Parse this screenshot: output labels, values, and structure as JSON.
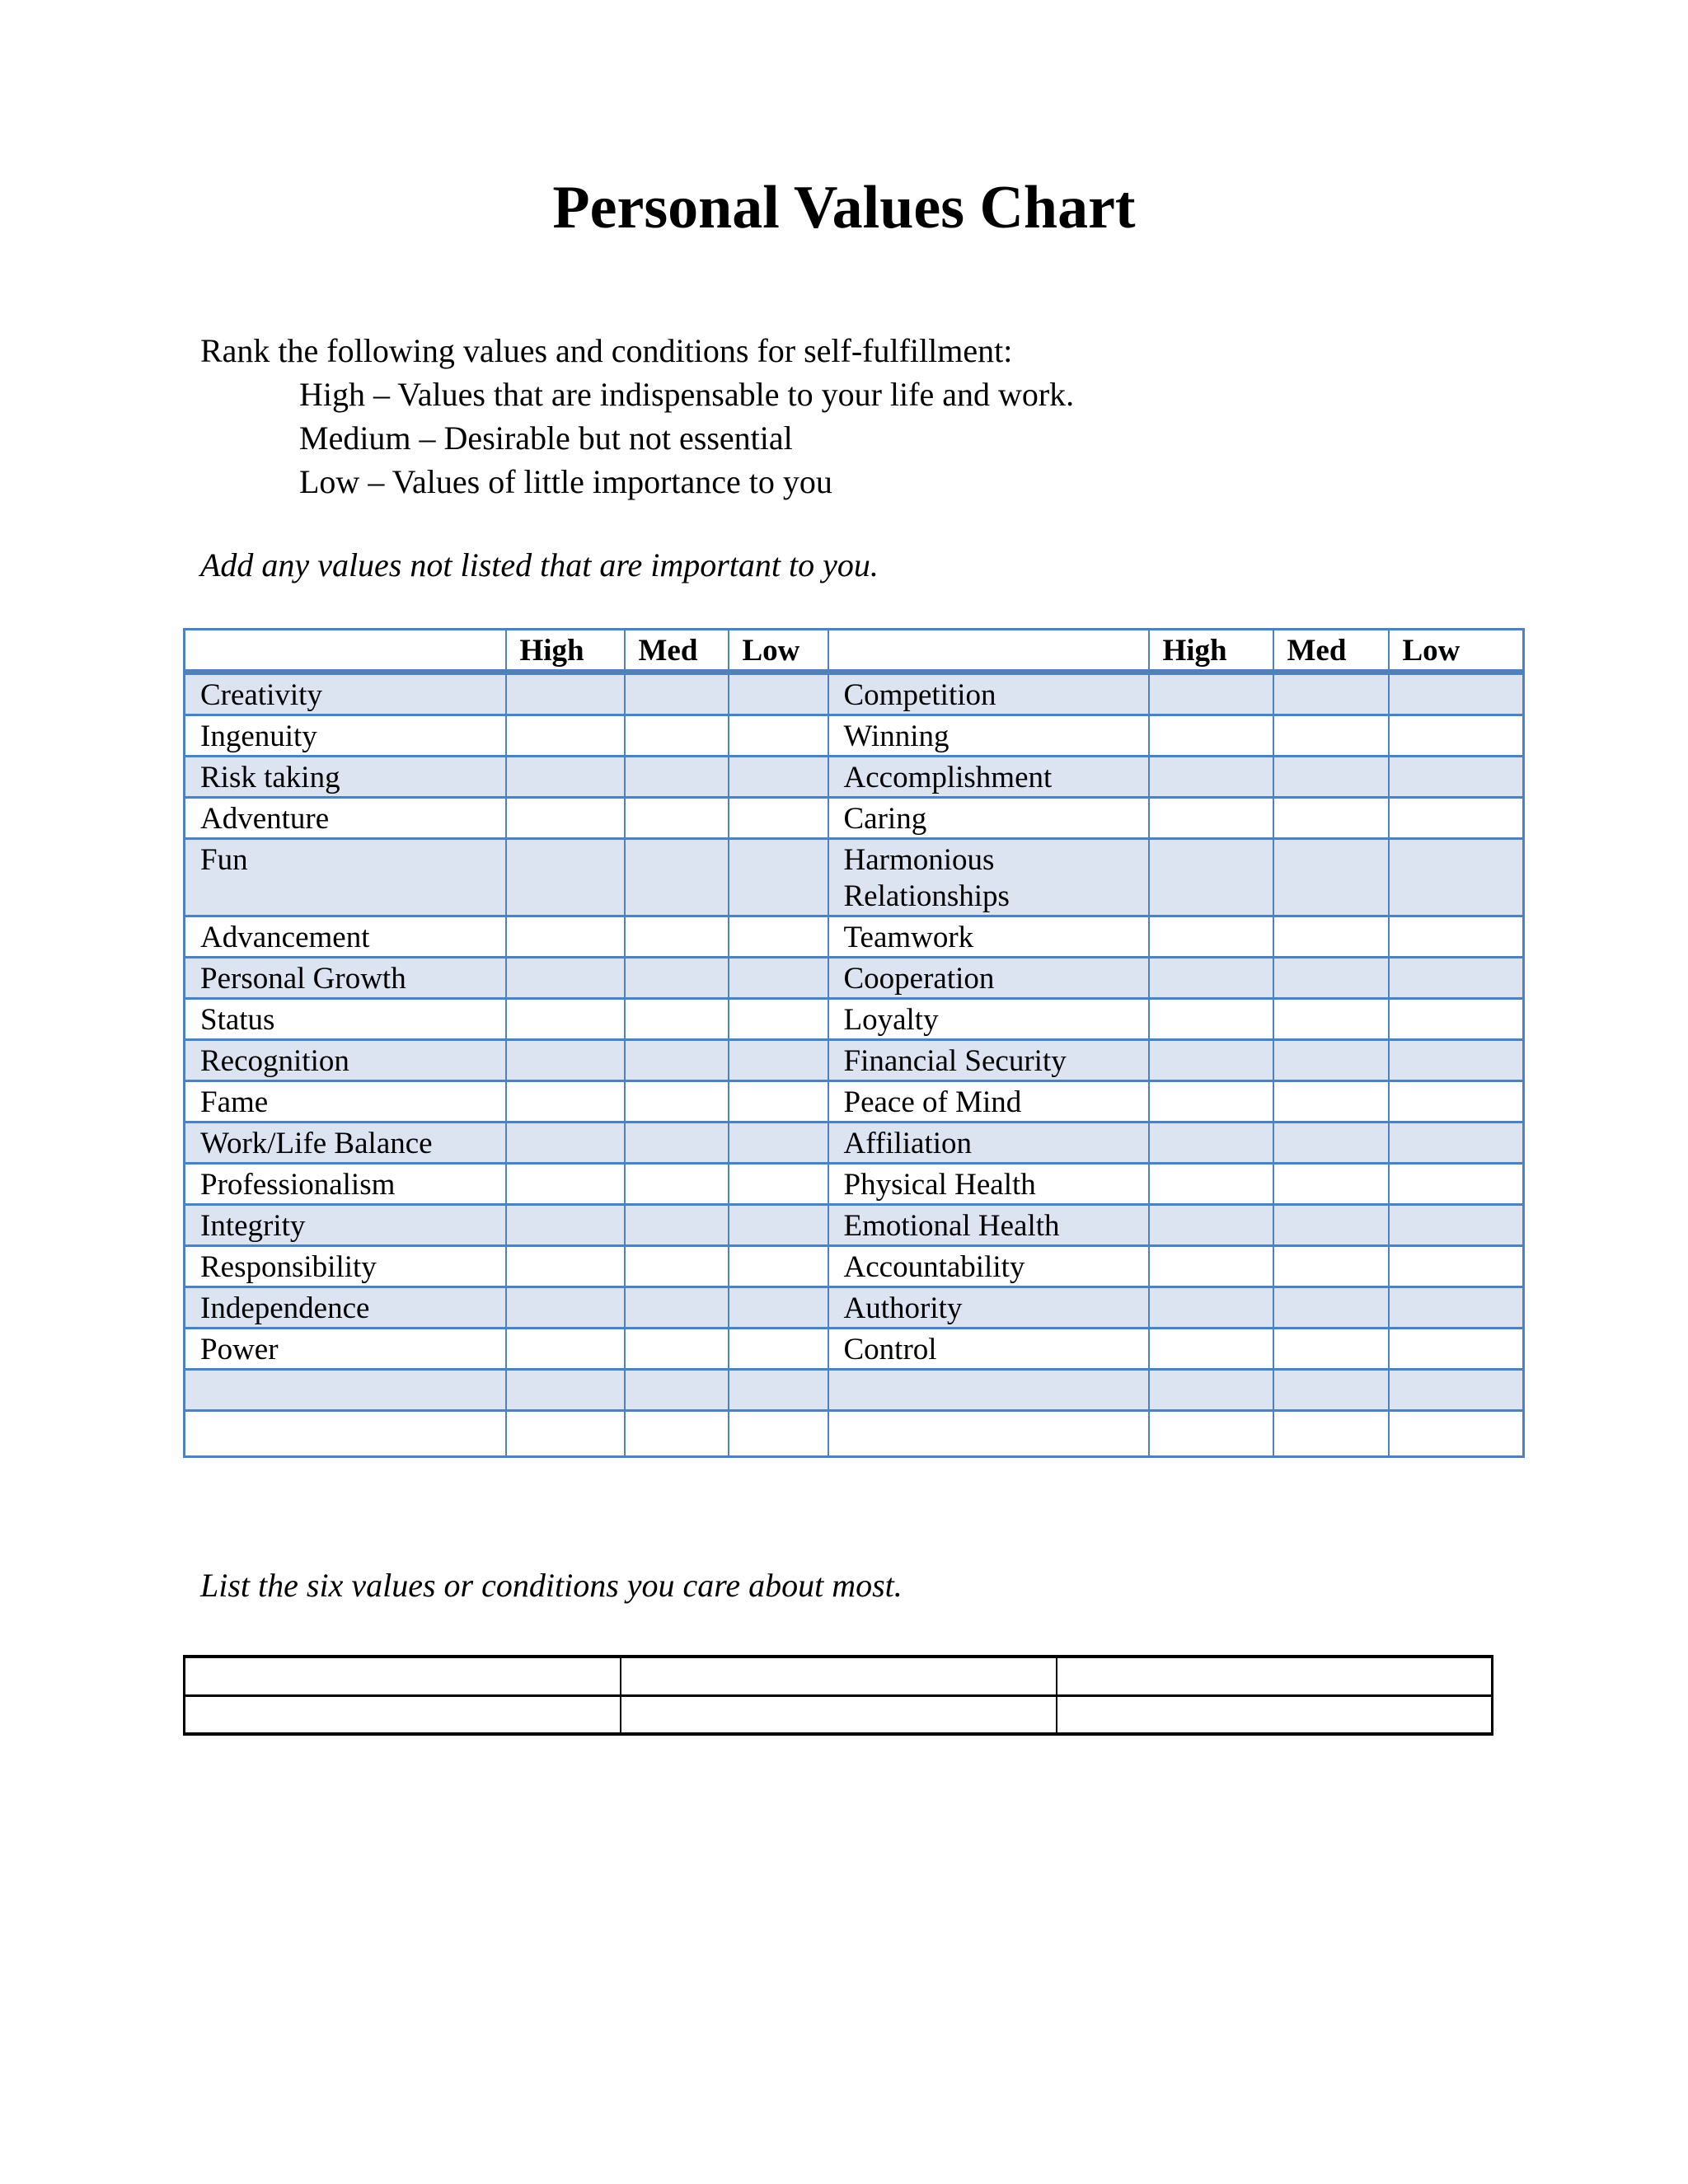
{
  "document": {
    "title": "Personal Values Chart",
    "intro_lead": "Rank the following values and conditions for self-fulfillment:",
    "intro_definitions": [
      "High – Values that are indispensable to your life and work.",
      "Medium – Desirable but not essential",
      "Low – Values of little importance to you"
    ],
    "add_values_note": "Add any values not listed that are important to you.",
    "list_six_note": "List the six values or conditions you care about most."
  },
  "values_table": {
    "rank_headers": [
      "High",
      "Med",
      "Low"
    ],
    "rows": [
      {
        "left": "Creativity",
        "right": "Competition"
      },
      {
        "left": "Ingenuity",
        "right": "Winning"
      },
      {
        "left": "Risk taking",
        "right": "Accomplishment"
      },
      {
        "left": "Adventure",
        "right": "Caring"
      },
      {
        "left": "Fun",
        "right": "Harmonious Relationships"
      },
      {
        "left": "Advancement",
        "right": "Teamwork"
      },
      {
        "left": "Personal Growth",
        "right": "Cooperation"
      },
      {
        "left": "Status",
        "right": "Loyalty"
      },
      {
        "left": "Recognition",
        "right": "Financial Security"
      },
      {
        "left": "Fame",
        "right": "Peace of Mind"
      },
      {
        "left": "Work/Life Balance",
        "right": "Affiliation"
      },
      {
        "left": "Professionalism",
        "right": "Physical Health"
      },
      {
        "left": "Integrity",
        "right": "Emotional Health"
      },
      {
        "left": "Responsibility",
        "right": "Accountability"
      },
      {
        "left": "Independence",
        "right": "Authority"
      },
      {
        "left": "Power",
        "right": "Control"
      },
      {
        "left": "",
        "right": ""
      },
      {
        "left": "",
        "right": ""
      }
    ],
    "colors": {
      "border": "#4f81bd",
      "band": "#dbe4f0"
    }
  },
  "top_six_table": {
    "rows": 2,
    "columns": 3
  }
}
